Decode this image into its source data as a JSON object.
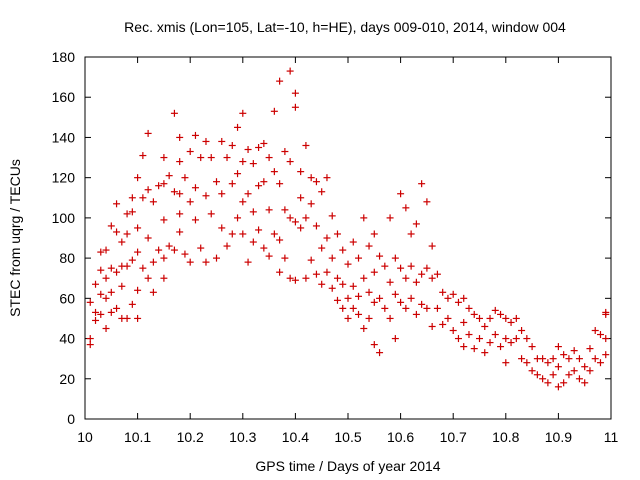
{
  "chart_data": {
    "type": "scatter",
    "title": "Rec. xmis (Lon=105, Lat=-10, h=HE), days 009-010, 2014, window 004",
    "xlabel": "GPS time / Days of year 2014",
    "ylabel": "STEC from uqrg / TECUs",
    "xlim": [
      10,
      11
    ],
    "ylim": [
      0,
      180
    ],
    "xticks": [
      "10",
      "10.1",
      "10.2",
      "10.3",
      "10.4",
      "10.5",
      "10.6",
      "10.7",
      "10.8",
      "10.9",
      "11"
    ],
    "yticks": [
      "0",
      "20",
      "40",
      "60",
      "80",
      "100",
      "120",
      "140",
      "160",
      "180"
    ],
    "grid": false,
    "legend": "none",
    "marker": "+",
    "color": "#cc0000",
    "points": [
      [
        10.01,
        40
      ],
      [
        10.01,
        37
      ],
      [
        10.01,
        58
      ],
      [
        10.02,
        53
      ],
      [
        10.02,
        49
      ],
      [
        10.02,
        67
      ],
      [
        10.03,
        52
      ],
      [
        10.03,
        62
      ],
      [
        10.03,
        74
      ],
      [
        10.03,
        83
      ],
      [
        10.04,
        60
      ],
      [
        10.04,
        70
      ],
      [
        10.04,
        84
      ],
      [
        10.04,
        45
      ],
      [
        10.05,
        96
      ],
      [
        10.05,
        63
      ],
      [
        10.05,
        53
      ],
      [
        10.05,
        75
      ],
      [
        10.06,
        93
      ],
      [
        10.06,
        107
      ],
      [
        10.06,
        73
      ],
      [
        10.06,
        55
      ],
      [
        10.07,
        88
      ],
      [
        10.07,
        66
      ],
      [
        10.07,
        50
      ],
      [
        10.07,
        76
      ],
      [
        10.08,
        102
      ],
      [
        10.08,
        92
      ],
      [
        10.08,
        50
      ],
      [
        10.08,
        76
      ],
      [
        10.09,
        110
      ],
      [
        10.09,
        103
      ],
      [
        10.09,
        79
      ],
      [
        10.09,
        57
      ],
      [
        10.1,
        120
      ],
      [
        10.1,
        95
      ],
      [
        10.1,
        83
      ],
      [
        10.1,
        64
      ],
      [
        10.1,
        50
      ],
      [
        10.11,
        131
      ],
      [
        10.11,
        110
      ],
      [
        10.11,
        75
      ],
      [
        10.12,
        142
      ],
      [
        10.12,
        114
      ],
      [
        10.12,
        90
      ],
      [
        10.12,
        70
      ],
      [
        10.13,
        108
      ],
      [
        10.13,
        78
      ],
      [
        10.13,
        63
      ],
      [
        10.14,
        116
      ],
      [
        10.14,
        84
      ],
      [
        10.15,
        130
      ],
      [
        10.15,
        117
      ],
      [
        10.15,
        99
      ],
      [
        10.15,
        80
      ],
      [
        10.15,
        70
      ],
      [
        10.16,
        121
      ],
      [
        10.16,
        86
      ],
      [
        10.17,
        152
      ],
      [
        10.17,
        113
      ],
      [
        10.17,
        84
      ],
      [
        10.18,
        140
      ],
      [
        10.18,
        128
      ],
      [
        10.18,
        112
      ],
      [
        10.18,
        102
      ],
      [
        10.18,
        93
      ],
      [
        10.19,
        120
      ],
      [
        10.19,
        82
      ],
      [
        10.2,
        133
      ],
      [
        10.2,
        108
      ],
      [
        10.2,
        78
      ],
      [
        10.21,
        141
      ],
      [
        10.21,
        115
      ],
      [
        10.21,
        99
      ],
      [
        10.22,
        130
      ],
      [
        10.22,
        85
      ],
      [
        10.23,
        138
      ],
      [
        10.23,
        111
      ],
      [
        10.23,
        78
      ],
      [
        10.24,
        130
      ],
      [
        10.24,
        102
      ],
      [
        10.25,
        118
      ],
      [
        10.25,
        80
      ],
      [
        10.26,
        138
      ],
      [
        10.26,
        112
      ],
      [
        10.26,
        95
      ],
      [
        10.27,
        130
      ],
      [
        10.27,
        86
      ],
      [
        10.28,
        136
      ],
      [
        10.28,
        117
      ],
      [
        10.28,
        92
      ],
      [
        10.29,
        145
      ],
      [
        10.29,
        122
      ],
      [
        10.29,
        100
      ],
      [
        10.3,
        152
      ],
      [
        10.3,
        128
      ],
      [
        10.3,
        108
      ],
      [
        10.3,
        92
      ],
      [
        10.31,
        134
      ],
      [
        10.31,
        112
      ],
      [
        10.31,
        78
      ],
      [
        10.32,
        127
      ],
      [
        10.32,
        103
      ],
      [
        10.32,
        88
      ],
      [
        10.33,
        135
      ],
      [
        10.33,
        116
      ],
      [
        10.33,
        94
      ],
      [
        10.34,
        137
      ],
      [
        10.34,
        118
      ],
      [
        10.34,
        85
      ],
      [
        10.35,
        130
      ],
      [
        10.35,
        104
      ],
      [
        10.35,
        81
      ],
      [
        10.36,
        153
      ],
      [
        10.36,
        123
      ],
      [
        10.36,
        92
      ],
      [
        10.37,
        168
      ],
      [
        10.37,
        117
      ],
      [
        10.37,
        89
      ],
      [
        10.37,
        73
      ],
      [
        10.38,
        133
      ],
      [
        10.38,
        104
      ],
      [
        10.38,
        80
      ],
      [
        10.39,
        173
      ],
      [
        10.39,
        128
      ],
      [
        10.39,
        100
      ],
      [
        10.39,
        70
      ],
      [
        10.4,
        162
      ],
      [
        10.4,
        155
      ],
      [
        10.4,
        98
      ],
      [
        10.4,
        69
      ],
      [
        10.41,
        123
      ],
      [
        10.41,
        110
      ],
      [
        10.41,
        95
      ],
      [
        10.42,
        136
      ],
      [
        10.42,
        100
      ],
      [
        10.42,
        70
      ],
      [
        10.43,
        120
      ],
      [
        10.43,
        107
      ],
      [
        10.43,
        79
      ],
      [
        10.44,
        118
      ],
      [
        10.44,
        96
      ],
      [
        10.44,
        72
      ],
      [
        10.45,
        113
      ],
      [
        10.45,
        85
      ],
      [
        10.45,
        67
      ],
      [
        10.46,
        120
      ],
      [
        10.46,
        90
      ],
      [
        10.46,
        73
      ],
      [
        10.47,
        101
      ],
      [
        10.47,
        80
      ],
      [
        10.47,
        65
      ],
      [
        10.48,
        92
      ],
      [
        10.48,
        70
      ],
      [
        10.48,
        59
      ],
      [
        10.49,
        84
      ],
      [
        10.49,
        67
      ],
      [
        10.49,
        55
      ],
      [
        10.5,
        77
      ],
      [
        10.5,
        60
      ],
      [
        10.5,
        50
      ],
      [
        10.51,
        88
      ],
      [
        10.51,
        66
      ],
      [
        10.51,
        55
      ],
      [
        10.52,
        80
      ],
      [
        10.52,
        61
      ],
      [
        10.52,
        52
      ],
      [
        10.53,
        100
      ],
      [
        10.53,
        70
      ],
      [
        10.53,
        45
      ],
      [
        10.54,
        86
      ],
      [
        10.54,
        63
      ],
      [
        10.54,
        50
      ],
      [
        10.55,
        92
      ],
      [
        10.55,
        73
      ],
      [
        10.55,
        58
      ],
      [
        10.55,
        37
      ],
      [
        10.56,
        81
      ],
      [
        10.56,
        60
      ],
      [
        10.56,
        33
      ],
      [
        10.57,
        76
      ],
      [
        10.57,
        55
      ],
      [
        10.58,
        100
      ],
      [
        10.58,
        68
      ],
      [
        10.58,
        50
      ],
      [
        10.59,
        80
      ],
      [
        10.59,
        62
      ],
      [
        10.59,
        40
      ],
      [
        10.6,
        112
      ],
      [
        10.6,
        75
      ],
      [
        10.6,
        58
      ],
      [
        10.61,
        105
      ],
      [
        10.61,
        70
      ],
      [
        10.61,
        55
      ],
      [
        10.62,
        92
      ],
      [
        10.62,
        76
      ],
      [
        10.62,
        60
      ],
      [
        10.63,
        97
      ],
      [
        10.63,
        68
      ],
      [
        10.63,
        52
      ],
      [
        10.64,
        117
      ],
      [
        10.64,
        72
      ],
      [
        10.64,
        57
      ],
      [
        10.65,
        108
      ],
      [
        10.65,
        75
      ],
      [
        10.65,
        55
      ],
      [
        10.66,
        86
      ],
      [
        10.66,
        70
      ],
      [
        10.66,
        46
      ],
      [
        10.67,
        72
      ],
      [
        10.67,
        55
      ],
      [
        10.68,
        63
      ],
      [
        10.68,
        47
      ],
      [
        10.69,
        60
      ],
      [
        10.69,
        50
      ],
      [
        10.7,
        62
      ],
      [
        10.7,
        44
      ],
      [
        10.71,
        58
      ],
      [
        10.71,
        40
      ],
      [
        10.72,
        60
      ],
      [
        10.72,
        48
      ],
      [
        10.72,
        36
      ],
      [
        10.73,
        55
      ],
      [
        10.73,
        42
      ],
      [
        10.74,
        52
      ],
      [
        10.74,
        35
      ],
      [
        10.75,
        50
      ],
      [
        10.75,
        40
      ],
      [
        10.76,
        46
      ],
      [
        10.76,
        33
      ],
      [
        10.77,
        50
      ],
      [
        10.77,
        38
      ],
      [
        10.78,
        54
      ],
      [
        10.78,
        42
      ],
      [
        10.79,
        52
      ],
      [
        10.79,
        36
      ],
      [
        10.8,
        50
      ],
      [
        10.8,
        40
      ],
      [
        10.8,
        28
      ],
      [
        10.81,
        48
      ],
      [
        10.81,
        38
      ],
      [
        10.82,
        50
      ],
      [
        10.82,
        40
      ],
      [
        10.83,
        44
      ],
      [
        10.83,
        30
      ],
      [
        10.84,
        40
      ],
      [
        10.84,
        28
      ],
      [
        10.85,
        36
      ],
      [
        10.85,
        24
      ],
      [
        10.86,
        30
      ],
      [
        10.86,
        22
      ],
      [
        10.87,
        30
      ],
      [
        10.87,
        20
      ],
      [
        10.88,
        28
      ],
      [
        10.88,
        18
      ],
      [
        10.89,
        30
      ],
      [
        10.89,
        22
      ],
      [
        10.9,
        36
      ],
      [
        10.9,
        26
      ],
      [
        10.9,
        16
      ],
      [
        10.91,
        32
      ],
      [
        10.91,
        18
      ],
      [
        10.92,
        30
      ],
      [
        10.92,
        22
      ],
      [
        10.93,
        34
      ],
      [
        10.93,
        24
      ],
      [
        10.94,
        30
      ],
      [
        10.94,
        20
      ],
      [
        10.95,
        26
      ],
      [
        10.95,
        18
      ],
      [
        10.96,
        35
      ],
      [
        10.96,
        24
      ],
      [
        10.97,
        44
      ],
      [
        10.97,
        30
      ],
      [
        10.98,
        42
      ],
      [
        10.98,
        28
      ],
      [
        10.99,
        52
      ],
      [
        10.99,
        40
      ],
      [
        10.99,
        32
      ],
      [
        10.99,
        53
      ]
    ]
  }
}
